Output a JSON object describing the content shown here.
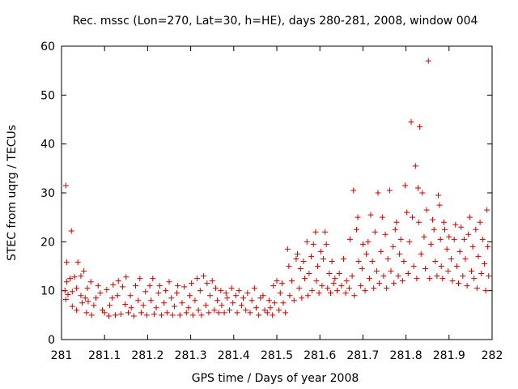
{
  "chart_data": {
    "type": "scatter",
    "title": "Rec. mssc (Lon=270, Lat=30, h=HE), days 280-281, 2008, window 004",
    "xlabel": "GPS time / Days of year 2008",
    "ylabel": "STEC from uqrg / TECUs",
    "xlim": [
      281,
      282
    ],
    "ylim": [
      0,
      60
    ],
    "x_ticks": [
      "281",
      "281.1",
      "281.2",
      "281.3",
      "281.4",
      "281.5",
      "281.6",
      "281.7",
      "281.8",
      "281.9",
      "282"
    ],
    "y_ticks": [
      "0",
      "10",
      "20",
      "30",
      "40",
      "50",
      "60"
    ],
    "grid": false,
    "legend": "none",
    "marker": "+",
    "color": "#cc0000",
    "points": [
      [
        281.01,
        31.5
      ],
      [
        281.023,
        22.2
      ],
      [
        281.012,
        15.8
      ],
      [
        281.038,
        15.8
      ],
      [
        281.012,
        11.8
      ],
      [
        281.02,
        12.5
      ],
      [
        281.03,
        12.8
      ],
      [
        281.045,
        13.0
      ],
      [
        281.052,
        14.0
      ],
      [
        281.008,
        10.0
      ],
      [
        281.015,
        9.2
      ],
      [
        281.01,
        8.2
      ],
      [
        281.025,
        9.8
      ],
      [
        281.035,
        10.5
      ],
      [
        281.045,
        9.0
      ],
      [
        281.055,
        8.5
      ],
      [
        281.06,
        10.5
      ],
      [
        281.068,
        11.8
      ],
      [
        281.025,
        6.8
      ],
      [
        281.035,
        6.0
      ],
      [
        281.048,
        7.5
      ],
      [
        281.058,
        5.5
      ],
      [
        281.062,
        7.8
      ],
      [
        281.07,
        5.0
      ],
      [
        281.075,
        7.0
      ],
      [
        281.08,
        8.5
      ],
      [
        281.085,
        11.0
      ],
      [
        281.09,
        9.5
      ],
      [
        281.095,
        6.0
      ],
      [
        281.1,
        5.5
      ],
      [
        281.105,
        10.2
      ],
      [
        281.11,
        4.8
      ],
      [
        281.112,
        7.0
      ],
      [
        281.118,
        8.5
      ],
      [
        281.12,
        11.2
      ],
      [
        281.125,
        5.0
      ],
      [
        281.13,
        9.0
      ],
      [
        281.132,
        12.0
      ],
      [
        281.138,
        5.2
      ],
      [
        281.142,
        10.8
      ],
      [
        281.148,
        7.2
      ],
      [
        281.15,
        12.8
      ],
      [
        281.155,
        5.5
      ],
      [
        281.16,
        9.0
      ],
      [
        281.162,
        6.5
      ],
      [
        281.168,
        4.8
      ],
      [
        281.172,
        11.0
      ],
      [
        281.178,
        8.0
      ],
      [
        281.182,
        12.5
      ],
      [
        281.185,
        5.5
      ],
      [
        281.19,
        7.0
      ],
      [
        281.195,
        9.8
      ],
      [
        281.198,
        5.0
      ],
      [
        281.205,
        11.0
      ],
      [
        281.208,
        8.0
      ],
      [
        281.212,
        12.5
      ],
      [
        281.215,
        5.2
      ],
      [
        281.22,
        6.5
      ],
      [
        281.225,
        9.5
      ],
      [
        281.228,
        11.0
      ],
      [
        281.232,
        5.0
      ],
      [
        281.238,
        7.5
      ],
      [
        281.242,
        10.0
      ],
      [
        281.245,
        5.5
      ],
      [
        281.25,
        11.8
      ],
      [
        281.255,
        8.5
      ],
      [
        281.258,
        5.0
      ],
      [
        281.262,
        6.8
      ],
      [
        281.268,
        9.5
      ],
      [
        281.27,
        11.0
      ],
      [
        281.275,
        5.0
      ],
      [
        281.28,
        7.5
      ],
      [
        281.285,
        10.8
      ],
      [
        281.29,
        5.5
      ],
      [
        281.295,
        6.5
      ],
      [
        281.298,
        9.0
      ],
      [
        281.302,
        11.5
      ],
      [
        281.305,
        5.0
      ],
      [
        281.31,
        8.0
      ],
      [
        281.315,
        12.5
      ],
      [
        281.318,
        6.0
      ],
      [
        281.322,
        10.0
      ],
      [
        281.325,
        5.0
      ],
      [
        281.33,
        13.0
      ],
      [
        281.335,
        7.0
      ],
      [
        281.338,
        11.5
      ],
      [
        281.342,
        5.5
      ],
      [
        281.345,
        9.0
      ],
      [
        281.35,
        12.0
      ],
      [
        281.355,
        6.0
      ],
      [
        281.358,
        10.5
      ],
      [
        281.362,
        8.0
      ],
      [
        281.365,
        5.5
      ],
      [
        281.37,
        10.0
      ],
      [
        281.372,
        7.0
      ],
      [
        281.378,
        5.5
      ],
      [
        281.382,
        9.5
      ],
      [
        281.385,
        8.5
      ],
      [
        281.39,
        6.0
      ],
      [
        281.395,
        10.5
      ],
      [
        281.398,
        7.5
      ],
      [
        281.405,
        9.0
      ],
      [
        281.408,
        5.5
      ],
      [
        281.412,
        10.0
      ],
      [
        281.418,
        7.0
      ],
      [
        281.422,
        8.5
      ],
      [
        281.428,
        6.0
      ],
      [
        281.432,
        9.5
      ],
      [
        281.438,
        5.5
      ],
      [
        281.442,
        8.0
      ],
      [
        281.448,
        10.5
      ],
      [
        281.452,
        6.5
      ],
      [
        281.458,
        5.0
      ],
      [
        281.462,
        8.5
      ],
      [
        281.468,
        9.0
      ],
      [
        281.472,
        6.0
      ],
      [
        281.478,
        5.5
      ],
      [
        281.482,
        8.0
      ],
      [
        281.485,
        6.5
      ],
      [
        281.49,
        5.0
      ],
      [
        281.492,
        11.0
      ],
      [
        281.495,
        7.5
      ],
      [
        281.5,
        12.0
      ],
      [
        281.505,
        6.0
      ],
      [
        281.508,
        9.5
      ],
      [
        281.512,
        11.5
      ],
      [
        281.515,
        7.5
      ],
      [
        281.52,
        5.5
      ],
      [
        281.525,
        18.5
      ],
      [
        281.528,
        15.0
      ],
      [
        281.53,
        9.0
      ],
      [
        281.535,
        12.0
      ],
      [
        281.54,
        8.0
      ],
      [
        281.545,
        16.5
      ],
      [
        281.548,
        17.5
      ],
      [
        281.552,
        10.5
      ],
      [
        281.555,
        14.5
      ],
      [
        281.558,
        8.5
      ],
      [
        281.562,
        16.0
      ],
      [
        281.565,
        12.5
      ],
      [
        281.57,
        20.0
      ],
      [
        281.572,
        9.0
      ],
      [
        281.575,
        13.5
      ],
      [
        281.58,
        17.0
      ],
      [
        281.582,
        10.0
      ],
      [
        281.585,
        19.5
      ],
      [
        281.59,
        22.0
      ],
      [
        281.592,
        12.0
      ],
      [
        281.595,
        15.0
      ],
      [
        281.598,
        9.5
      ],
      [
        281.602,
        18.0
      ],
      [
        281.605,
        11.0
      ],
      [
        281.608,
        16.5
      ],
      [
        281.612,
        22.0
      ],
      [
        281.615,
        19.5
      ],
      [
        281.618,
        10.5
      ],
      [
        281.622,
        13.5
      ],
      [
        281.625,
        9.5
      ],
      [
        281.628,
        16.0
      ],
      [
        281.632,
        11.5
      ],
      [
        281.635,
        12.5
      ],
      [
        281.64,
        10.0
      ],
      [
        281.645,
        13.5
      ],
      [
        281.65,
        11.0
      ],
      [
        281.655,
        16.5
      ],
      [
        281.66,
        9.5
      ],
      [
        281.662,
        12.0
      ],
      [
        281.668,
        10.5
      ],
      [
        281.67,
        20.5
      ],
      [
        281.675,
        13.0
      ],
      [
        281.678,
        30.5
      ],
      [
        281.68,
        9.0
      ],
      [
        281.685,
        22.5
      ],
      [
        281.688,
        25.0
      ],
      [
        281.69,
        16.0
      ],
      [
        281.695,
        11.0
      ],
      [
        281.698,
        14.5
      ],
      [
        281.7,
        19.5
      ],
      [
        281.705,
        10.0
      ],
      [
        281.708,
        17.5
      ],
      [
        281.712,
        20.0
      ],
      [
        281.715,
        12.5
      ],
      [
        281.718,
        25.5
      ],
      [
        281.722,
        16.0
      ],
      [
        281.725,
        10.5
      ],
      [
        281.728,
        22.0
      ],
      [
        281.732,
        14.0
      ],
      [
        281.735,
        30.0
      ],
      [
        281.738,
        11.5
      ],
      [
        281.742,
        18.0
      ],
      [
        281.745,
        25.0
      ],
      [
        281.748,
        13.0
      ],
      [
        281.752,
        21.5
      ],
      [
        281.755,
        10.5
      ],
      [
        281.758,
        16.5
      ],
      [
        281.762,
        30.5
      ],
      [
        281.765,
        14.0
      ],
      [
        281.77,
        19.0
      ],
      [
        281.772,
        11.5
      ],
      [
        281.775,
        22.5
      ],
      [
        281.778,
        24.0
      ],
      [
        281.782,
        13.0
      ],
      [
        281.785,
        17.5
      ],
      [
        281.788,
        20.5
      ],
      [
        281.792,
        12.0
      ],
      [
        281.795,
        16.0
      ],
      [
        281.798,
        31.5
      ],
      [
        281.802,
        26.0
      ],
      [
        281.805,
        13.5
      ],
      [
        281.808,
        20.0
      ],
      [
        281.812,
        44.5
      ],
      [
        281.815,
        25.0
      ],
      [
        281.818,
        15.0
      ],
      [
        281.822,
        35.5
      ],
      [
        281.825,
        12.5
      ],
      [
        281.828,
        31.0
      ],
      [
        281.83,
        24.0
      ],
      [
        281.832,
        43.5
      ],
      [
        281.835,
        17.5
      ],
      [
        281.838,
        30.0
      ],
      [
        281.842,
        21.0
      ],
      [
        281.845,
        14.5
      ],
      [
        281.848,
        26.5
      ],
      [
        281.852,
        57.0
      ],
      [
        281.855,
        12.5
      ],
      [
        281.858,
        19.5
      ],
      [
        281.862,
        24.5
      ],
      [
        281.865,
        22.5
      ],
      [
        281.868,
        16.0
      ],
      [
        281.872,
        13.0
      ],
      [
        281.875,
        29.5
      ],
      [
        281.878,
        27.5
      ],
      [
        281.88,
        20.5
      ],
      [
        281.882,
        15.0
      ],
      [
        281.885,
        12.5
      ],
      [
        281.888,
        24.0
      ],
      [
        281.89,
        22.5
      ],
      [
        281.895,
        18.5
      ],
      [
        281.898,
        14.0
      ],
      [
        281.9,
        21.0
      ],
      [
        281.905,
        16.5
      ],
      [
        281.908,
        12.0
      ],
      [
        281.912,
        20.5
      ],
      [
        281.915,
        23.5
      ],
      [
        281.918,
        15.0
      ],
      [
        281.922,
        11.5
      ],
      [
        281.925,
        18.0
      ],
      [
        281.928,
        23.0
      ],
      [
        281.932,
        13.0
      ],
      [
        281.935,
        20.5
      ],
      [
        281.938,
        16.5
      ],
      [
        281.942,
        11.0
      ],
      [
        281.945,
        21.5
      ],
      [
        281.948,
        25.0
      ],
      [
        281.952,
        14.0
      ],
      [
        281.955,
        19.0
      ],
      [
        281.958,
        12.5
      ],
      [
        281.962,
        22.5
      ],
      [
        281.965,
        10.5
      ],
      [
        281.968,
        17.0
      ],
      [
        281.972,
        24.0
      ],
      [
        281.975,
        13.5
      ],
      [
        281.978,
        20.5
      ],
      [
        281.982,
        15.5
      ],
      [
        281.985,
        10.0
      ],
      [
        281.988,
        26.5
      ],
      [
        281.99,
        19.0
      ],
      [
        281.992,
        13.0
      ]
    ]
  }
}
